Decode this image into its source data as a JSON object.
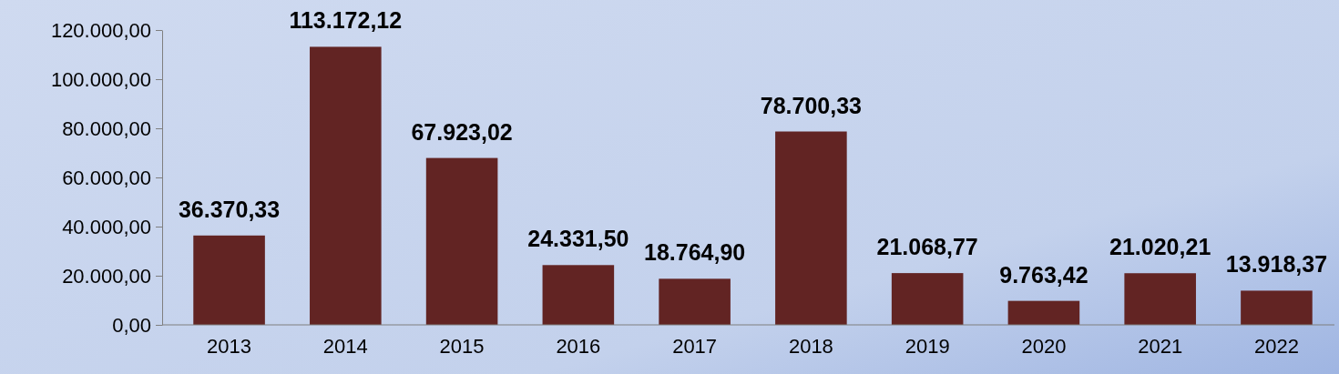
{
  "chart_data": {
    "type": "bar",
    "categories": [
      "2013",
      "2014",
      "2015",
      "2016",
      "2017",
      "2018",
      "2019",
      "2020",
      "2021",
      "2022"
    ],
    "values": [
      36370.33,
      113172.12,
      67923.02,
      24331.5,
      18764.9,
      78700.33,
      21068.77,
      9763.42,
      21020.21,
      13918.37
    ],
    "value_labels": [
      "36.370,33",
      "113.172,12",
      "67.923,02",
      "24.331,50",
      "18.764,90",
      "78.700,33",
      "21.068,77",
      "9.763,42",
      "21.020,21",
      "13.918,37"
    ],
    "color": "#622423",
    "ylim": [
      0,
      120000
    ],
    "yticks": [
      {
        "value": 0,
        "label": "0,00"
      },
      {
        "value": 20000,
        "label": "20.000,00"
      },
      {
        "value": 40000,
        "label": "40.000,00"
      },
      {
        "value": 60000,
        "label": "60.000,00"
      },
      {
        "value": 80000,
        "label": "80.000,00"
      },
      {
        "value": 100000,
        "label": "100.000,00"
      },
      {
        "value": 120000,
        "label": "120.000,00"
      }
    ],
    "grid": false
  }
}
